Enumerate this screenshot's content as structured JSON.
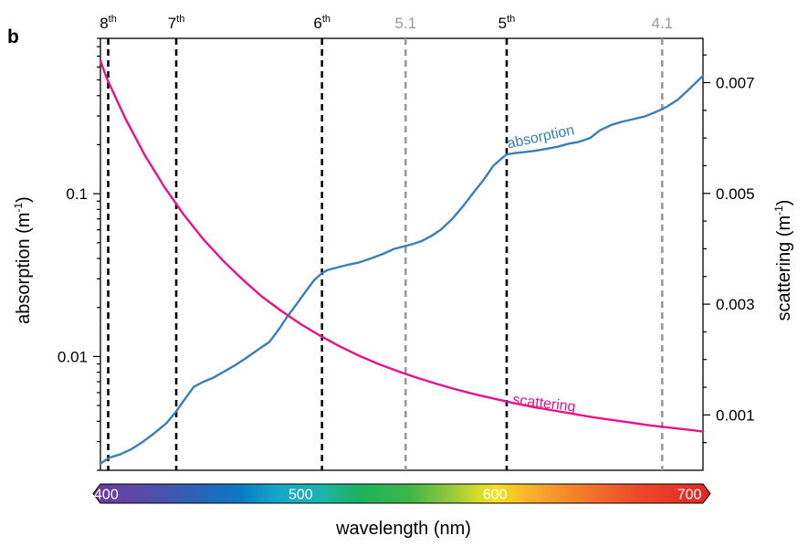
{
  "panel_label": "b",
  "chart_data": {
    "type": "line",
    "xlabel": "wavelength (nm)",
    "xlim": [
      397,
      707
    ],
    "ylabel_left": "absorption (m",
    "ylabel_left_sup": "-1",
    "ylabel_left_end": ")",
    "ylabel_right": "scattering (m",
    "ylabel_right_sup": "-1",
    "ylabel_right_end": ")",
    "y_left_scale": "log",
    "y_left_lim": [
      0.002,
      0.9
    ],
    "y_left_ticks": [
      {
        "value": 0.01,
        "label": "0.01"
      },
      {
        "value": 0.1,
        "label": "0.1"
      }
    ],
    "y_right_scale": "linear",
    "y_right_lim": [
      0.0,
      0.0078
    ],
    "y_right_ticks": [
      {
        "value": 0.001,
        "label": "0.001"
      },
      {
        "value": 0.003,
        "label": "0.003"
      },
      {
        "value": 0.005,
        "label": "0.005"
      },
      {
        "value": 0.007,
        "label": "0.007"
      }
    ],
    "grid": false,
    "series": [
      {
        "name": "absorption",
        "axis": "left",
        "color": "#3a7fb5",
        "x": [
          397,
          402,
          407,
          413,
          419,
          425,
          431,
          436,
          441,
          445,
          450,
          455,
          460,
          466,
          472,
          478,
          484,
          489,
          493,
          498,
          502,
          507,
          511,
          514,
          518,
          524,
          530,
          536,
          542,
          548,
          554,
          558,
          562,
          567,
          572,
          578,
          584,
          589,
          594,
          599,
          604,
          606,
          610,
          615,
          620,
          626,
          632,
          638,
          643,
          649,
          654,
          660,
          665,
          671,
          677,
          682,
          688,
          694,
          700,
          704,
          707
        ],
        "values": [
          0.0022,
          0.0024,
          0.0025,
          0.0027,
          0.003,
          0.0034,
          0.0039,
          0.0046,
          0.0056,
          0.0065,
          0.007,
          0.0074,
          0.008,
          0.0088,
          0.0098,
          0.011,
          0.0123,
          0.0148,
          0.0175,
          0.021,
          0.0245,
          0.0295,
          0.0325,
          0.034,
          0.035,
          0.0365,
          0.0378,
          0.04,
          0.0425,
          0.0458,
          0.0478,
          0.0492,
          0.051,
          0.0548,
          0.06,
          0.07,
          0.085,
          0.102,
          0.121,
          0.148,
          0.167,
          0.174,
          0.1775,
          0.18,
          0.183,
          0.188,
          0.194,
          0.203,
          0.208,
          0.22,
          0.245,
          0.265,
          0.276,
          0.287,
          0.298,
          0.315,
          0.34,
          0.378,
          0.44,
          0.49,
          0.53
        ]
      },
      {
        "name": "scattering",
        "axis": "right",
        "color": "#e5138a",
        "x": [
          397,
          400,
          405,
          410,
          420,
          430,
          440,
          450,
          460,
          470,
          480,
          490,
          500,
          510,
          520,
          530,
          540,
          550,
          560,
          570,
          580,
          590,
          600,
          610,
          620,
          630,
          640,
          650,
          660,
          670,
          680,
          690,
          700,
          707
        ],
        "values": [
          0.0074,
          0.0071,
          0.00672,
          0.00634,
          0.00568,
          0.00511,
          0.00461,
          0.00417,
          0.00379,
          0.00345,
          0.00314,
          0.00288,
          0.00264,
          0.00243,
          0.00224,
          0.00207,
          0.00192,
          0.00179,
          0.00167,
          0.00156,
          0.00146,
          0.00137,
          0.00129,
          0.00121,
          0.00114,
          0.00108,
          0.00102,
          0.00096,
          0.00091,
          0.00086,
          0.00081,
          0.00077,
          0.00073,
          0.0007
        ]
      }
    ],
    "series_labels": [
      {
        "text": "absorption",
        "series": "absorption",
        "x": 624,
        "y": 0.21,
        "axis": "left",
        "rotate": -12
      },
      {
        "text": "scattering",
        "series": "scattering",
        "x": 625,
        "y": 0.00113,
        "axis": "right",
        "rotate": 7
      }
    ],
    "markers": [
      {
        "x": 401,
        "main": "8",
        "sup": "th",
        "color": "#000000"
      },
      {
        "x": 436,
        "main": "7",
        "sup": "th",
        "color": "#000000"
      },
      {
        "x": 511,
        "main": "6",
        "sup": "th",
        "color": "#000000"
      },
      {
        "x": 554,
        "main": "5.1",
        "sup": "",
        "color": "#999999"
      },
      {
        "x": 606,
        "main": "5",
        "sup": "th",
        "color": "#000000"
      },
      {
        "x": 686,
        "main": "4.1",
        "sup": "",
        "color": "#999999"
      }
    ],
    "colorbar": {
      "labels": [
        {
          "x": 400,
          "label": "400"
        },
        {
          "x": 500,
          "label": "500"
        },
        {
          "x": 600,
          "label": "600"
        },
        {
          "x": 700,
          "label": "700"
        }
      ],
      "stops": [
        {
          "x": 397,
          "color": "#6a3c9e"
        },
        {
          "x": 420,
          "color": "#5a48a8"
        },
        {
          "x": 445,
          "color": "#2f5fb4"
        },
        {
          "x": 470,
          "color": "#0b78c4"
        },
        {
          "x": 490,
          "color": "#14a8c8"
        },
        {
          "x": 510,
          "color": "#1ab4b0"
        },
        {
          "x": 530,
          "color": "#1db25e"
        },
        {
          "x": 555,
          "color": "#3bb54a"
        },
        {
          "x": 575,
          "color": "#8dc63f"
        },
        {
          "x": 590,
          "color": "#d4dd2a"
        },
        {
          "x": 600,
          "color": "#f6e11e"
        },
        {
          "x": 615,
          "color": "#f7b42c"
        },
        {
          "x": 640,
          "color": "#f37f2a"
        },
        {
          "x": 670,
          "color": "#ec4a2a"
        },
        {
          "x": 707,
          "color": "#e02626"
        }
      ]
    }
  }
}
